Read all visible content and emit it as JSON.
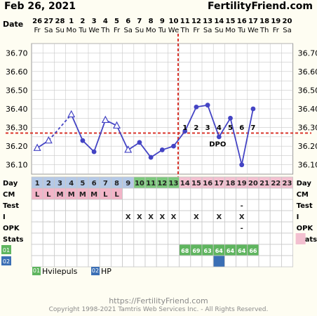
{
  "header": {
    "date": "Feb 26, 2021",
    "site": "FertilityFriend.com",
    "date_row_label": "Date"
  },
  "dates": [
    {
      "d": "26",
      "w": "Fr"
    },
    {
      "d": "27",
      "w": "Sa"
    },
    {
      "d": "28",
      "w": "Su"
    },
    {
      "d": "1",
      "w": "Mo"
    },
    {
      "d": "2",
      "w": "Tu"
    },
    {
      "d": "3",
      "w": "We"
    },
    {
      "d": "4",
      "w": "Th"
    },
    {
      "d": "5",
      "w": "Fr"
    },
    {
      "d": "6",
      "w": "Sa"
    },
    {
      "d": "7",
      "w": "Su"
    },
    {
      "d": "8",
      "w": "Mo"
    },
    {
      "d": "9",
      "w": "Tu"
    },
    {
      "d": "10",
      "w": "We"
    },
    {
      "d": "11",
      "w": "Th"
    },
    {
      "d": "12",
      "w": "Fr"
    },
    {
      "d": "13",
      "w": "Sa"
    },
    {
      "d": "14",
      "w": "Su"
    },
    {
      "d": "15",
      "w": "Mo"
    },
    {
      "d": "16",
      "w": "Tu"
    },
    {
      "d": "17",
      "w": "We"
    },
    {
      "d": "18",
      "w": "Th"
    },
    {
      "d": "19",
      "w": "Fr"
    },
    {
      "d": "20",
      "w": "Sa"
    }
  ],
  "chart_data": {
    "type": "line",
    "y_ticks": [
      "36.70",
      "36.60",
      "36.50",
      "36.40",
      "36.30",
      "36.20",
      "36.10"
    ],
    "ylim": [
      36.05,
      36.75
    ],
    "coverline": 36.27,
    "ovulation_day": 13,
    "temps": [
      {
        "day": 1,
        "t": 36.19,
        "marker": "open-triangle"
      },
      {
        "day": 2,
        "t": 36.23,
        "marker": "open-triangle"
      },
      {
        "day": 4,
        "t": 36.37,
        "marker": "open-triangle"
      },
      {
        "day": 5,
        "t": 36.23,
        "marker": "dot"
      },
      {
        "day": 6,
        "t": 36.17,
        "marker": "dot"
      },
      {
        "day": 7,
        "t": 36.34,
        "marker": "open-triangle"
      },
      {
        "day": 8,
        "t": 36.31,
        "marker": "open-triangle"
      },
      {
        "day": 9,
        "t": 36.18,
        "marker": "open-triangle"
      },
      {
        "day": 10,
        "t": 36.22,
        "marker": "dot"
      },
      {
        "day": 11,
        "t": 36.14,
        "marker": "dot"
      },
      {
        "day": 12,
        "t": 36.18,
        "marker": "dot"
      },
      {
        "day": 13,
        "t": 36.2,
        "marker": "dot"
      },
      {
        "day": 14,
        "t": 36.28,
        "marker": "dot"
      },
      {
        "day": 15,
        "t": 36.41,
        "marker": "dot"
      },
      {
        "day": 16,
        "t": 36.42,
        "marker": "dot"
      },
      {
        "day": 17,
        "t": 36.25,
        "marker": "dot"
      },
      {
        "day": 18,
        "t": 36.35,
        "marker": "dot"
      },
      {
        "day": 19,
        "t": 36.1,
        "marker": "dot"
      },
      {
        "day": 20,
        "t": 36.4,
        "marker": "dot"
      }
    ],
    "dashed_segments": [
      [
        2,
        4
      ]
    ],
    "dpo": [
      {
        "day": 14,
        "label": "1"
      },
      {
        "day": 15,
        "label": "2"
      },
      {
        "day": 16,
        "label": "3"
      },
      {
        "day": 17,
        "label": "4"
      },
      {
        "day": 18,
        "label": "5"
      },
      {
        "day": 19,
        "label": "6"
      },
      {
        "day": 20,
        "label": "7"
      }
    ],
    "dpo_label": "DPO"
  },
  "rows": {
    "day_label": "Day",
    "cm_label": "CM",
    "test_label": "Test",
    "i_label": "I",
    "opk_label": "OPK",
    "stats_label": "Stats",
    "cm": [
      "L",
      "L",
      "M",
      "M",
      "M",
      "M",
      "L",
      "L",
      "",
      "",
      "",
      "",
      "",
      "",
      "",
      "",
      "",
      "",
      "",
      "",
      "",
      "",
      ""
    ],
    "test": [
      "",
      "",
      "",
      "",
      "",
      "",
      "",
      "",
      "",
      "",
      "",
      "",
      "",
      "",
      "",
      "",
      "",
      "",
      "-",
      "",
      "",
      "",
      ""
    ],
    "i": [
      "",
      "",
      "",
      "",
      "",
      "",
      "",
      "",
      "X",
      "X",
      "X",
      "X",
      "X",
      "",
      "X",
      "",
      "X",
      "",
      "X",
      "",
      "",
      "",
      ""
    ],
    "opk": [
      "",
      "",
      "",
      "",
      "",
      "",
      "",
      "",
      "",
      "",
      "",
      "",
      "",
      "",
      "",
      "",
      "",
      "",
      "-",
      "",
      "",
      "",
      ""
    ],
    "custom1_tag": "01",
    "custom2_tag": "02",
    "custom1": [
      "",
      "",
      "",
      "",
      "",
      "",
      "",
      "",
      "",
      "",
      "",
      "",
      "",
      "68",
      "69",
      "63",
      "64",
      "64",
      "64",
      "66",
      "",
      "",
      ""
    ],
    "custom2_filled_day": 17
  },
  "legend": [
    {
      "tag": "01",
      "label": "Hvilepuls",
      "color": "#5fb55f"
    },
    {
      "tag": "02",
      "label": "HP",
      "color": "#3b6fb5"
    }
  ],
  "footer": {
    "url": "https://FertilityFriend.com",
    "copyright": "Copyright 1998-2021 Tamtris Web Services Inc. - All Rights Reserved."
  },
  "colors": {
    "line": "#4444c4",
    "coverline": "#d9342b",
    "day_blue": "#b5c9e6",
    "day_green": "#7cc77c",
    "day_pink": "#f3c0d0",
    "cm_pink": "#f2b5c8",
    "custom_green": "#5fb55f",
    "custom_blue": "#3b6fb5",
    "grid": "#c9c9c9"
  }
}
